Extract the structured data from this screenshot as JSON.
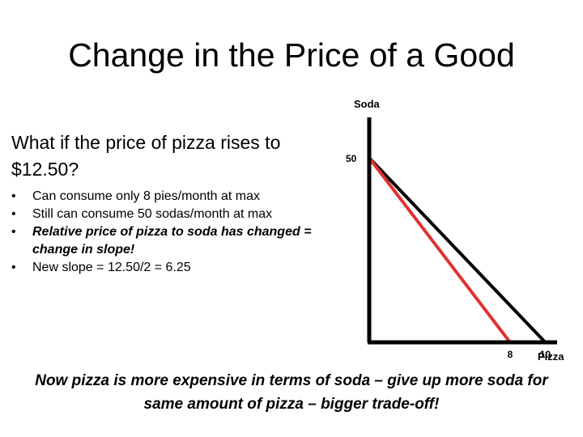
{
  "slide": {
    "title": "Change in the Price of a Good",
    "question": "What if the price of pizza rises to $12.50?",
    "bullets": [
      {
        "text": "Can consume only 8 pies/month at max",
        "emphasis": false
      },
      {
        "text": "Still can consume 50 sodas/month at max",
        "emphasis": false
      },
      {
        "text": "Relative price of pizza to soda has changed = change in slope!",
        "emphasis": true
      },
      {
        "text": "New slope = 12.50/2 = 6.25",
        "emphasis": false
      }
    ],
    "bullet_glyph": "•",
    "conclusion": "Now pizza is more expensive in terms of soda – give up more soda for same amount of pizza – bigger trade-off!"
  },
  "chart_data": {
    "type": "line",
    "xlabel": "Pizza",
    "ylabel": "Soda",
    "x_ticks": [
      8,
      10
    ],
    "y_ticks": [
      50
    ],
    "xlim": [
      0,
      11.5
    ],
    "ylim": [
      0,
      61
    ],
    "grid": false,
    "series": [
      {
        "color": "#000000",
        "points": [
          [
            0,
            50
          ],
          [
            10,
            0
          ]
        ]
      },
      {
        "color": "#e03232",
        "points": [
          [
            0,
            50
          ],
          [
            8,
            0
          ]
        ]
      }
    ]
  }
}
